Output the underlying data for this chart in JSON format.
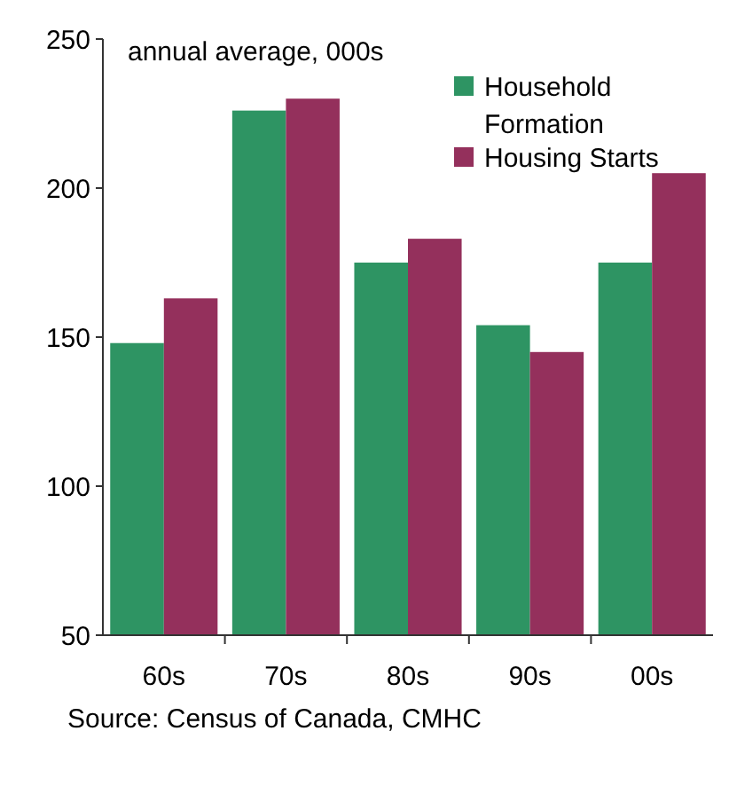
{
  "chart_data": {
    "type": "bar",
    "ylabel": "annual average, 000s",
    "categories": [
      "60s",
      "70s",
      "80s",
      "90s",
      "00s"
    ],
    "series": [
      {
        "name": "Household Formation",
        "color": "#2e9463",
        "values": [
          148,
          226,
          175,
          154,
          175
        ]
      },
      {
        "name": "Housing Starts",
        "color": "#94305c",
        "values": [
          163,
          230,
          183,
          145,
          205
        ]
      }
    ],
    "ylim": [
      50,
      250
    ],
    "yticks": [
      50,
      100,
      150,
      200,
      250
    ],
    "legend": "top right",
    "annotations": [
      "Source: Census of Canada, CMHC"
    ]
  }
}
